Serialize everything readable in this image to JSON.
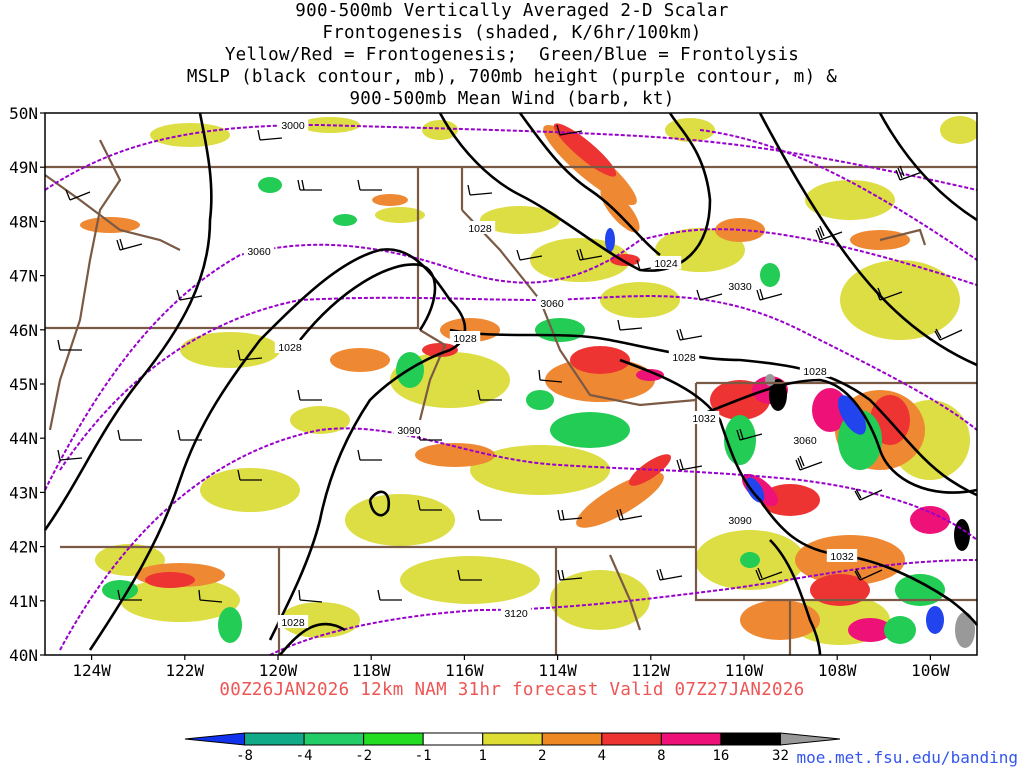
{
  "title": {
    "lines": [
      "900-500mb Vertically Averaged 2-D Scalar",
      "Frontogenesis (shaded, K/6hr/100km)",
      "Yellow/Red = Frontogenesis;  Green/Blue = Frontolysis",
      "MSLP (black contour, mb), 700mb height (purple contour, m) &",
      "900-500mb Mean Wind (barb, kt)"
    ]
  },
  "map": {
    "lon_range": [
      -125,
      -105
    ],
    "lat_range": [
      40,
      50
    ],
    "lat_labels": [
      "40N",
      "41N",
      "42N",
      "43N",
      "44N",
      "45N",
      "46N",
      "47N",
      "48N",
      "49N",
      "50N"
    ],
    "lon_labels": [
      "124W",
      "122W",
      "120W",
      "118W",
      "116W",
      "114W",
      "112W",
      "110W",
      "108W",
      "106W"
    ],
    "lon_ticks": [
      -124,
      -122,
      -120,
      -118,
      -116,
      -114,
      -112,
      -110,
      -108,
      -106
    ],
    "mslp_labels": [
      "1028",
      "1028",
      "1028",
      "1024",
      "1028",
      "1028",
      "1032",
      "1032",
      "1028"
    ],
    "height_labels": [
      "3000",
      "3060",
      "3060",
      "3030",
      "3060",
      "3090",
      "3090",
      "3120"
    ],
    "colors": {
      "mslp": "#000000",
      "height": "#9900cc",
      "border": "#7a5a44"
    }
  },
  "valid_time": "00Z26JAN2026 12km NAM 31hr forecast Valid 07Z27JAN2026",
  "colorbar": {
    "labels": [
      "-8",
      "-4",
      "-2",
      "-1",
      "1",
      "2",
      "4",
      "8",
      "16",
      "32"
    ],
    "colors": [
      "#1133ee",
      "#11aa88",
      "#22cc66",
      "#22dd22",
      "#ffffff",
      "#dddd33",
      "#ee8822",
      "#ee3333",
      "#ee1177",
      "#000000",
      "#999999"
    ]
  },
  "credit": "moe.met.fsu.edu/banding"
}
